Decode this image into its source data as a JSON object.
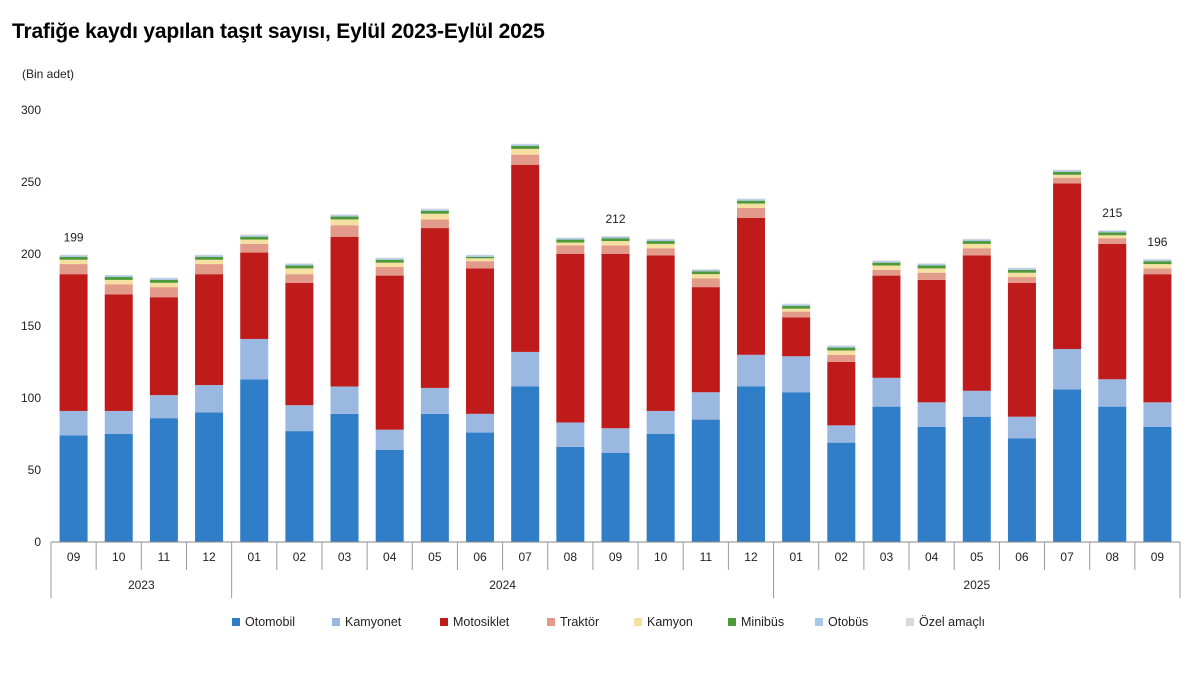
{
  "chart_data": {
    "type": "bar",
    "stacked": true,
    "title": "Trafiğe kaydı yapılan taşıt sayısı, Eylül 2023-Eylül 2025",
    "ylabel": "(Bin adet)",
    "ylim": [
      0,
      300
    ],
    "yticks": [
      "0",
      "50",
      "100",
      "150",
      "200",
      "250",
      "300"
    ],
    "ytick_values": [
      0,
      50,
      100,
      150,
      200,
      250,
      300
    ],
    "categories": [
      "09",
      "10",
      "11",
      "12",
      "01",
      "02",
      "03",
      "04",
      "05",
      "06",
      "07",
      "08",
      "09",
      "10",
      "11",
      "12",
      "01",
      "02",
      "03",
      "04",
      "05",
      "06",
      "07",
      "08",
      "09"
    ],
    "years": [
      {
        "label": "2023",
        "count": 4
      },
      {
        "label": "2024",
        "count": 12
      },
      {
        "label": "2025",
        "count": 9
      }
    ],
    "series": [
      {
        "name": "Otomobil",
        "color": "#2f7ec7",
        "values": [
          74,
          75,
          86,
          90,
          113,
          77,
          89,
          64,
          89,
          76,
          108,
          66,
          62,
          75,
          85,
          108,
          104,
          69,
          94,
          80,
          87,
          72,
          106,
          94,
          80
        ]
      },
      {
        "name": "Kamyonet",
        "color": "#9bb8e0",
        "values": [
          17,
          16,
          16,
          19,
          28,
          18,
          19,
          14,
          18,
          13,
          24,
          17,
          17,
          16,
          19,
          22,
          25,
          12,
          20,
          17,
          18,
          15,
          28,
          19,
          17
        ]
      },
      {
        "name": "Motosiklet",
        "color": "#bf1b1b",
        "values": [
          95,
          81,
          68,
          77,
          60,
          85,
          104,
          107,
          111,
          101,
          130,
          117,
          121,
          108,
          73,
          95,
          27,
          44,
          71,
          85,
          94,
          93,
          115,
          94,
          89
        ]
      },
      {
        "name": "Traktör",
        "color": "#e29a8a",
        "values": [
          7,
          7,
          7,
          7,
          6,
          6,
          8,
          6,
          6,
          5,
          7,
          6,
          6,
          5,
          6,
          7,
          4,
          5,
          4,
          5,
          5,
          4,
          4,
          4,
          4
        ]
      },
      {
        "name": "Kamyon",
        "color": "#f5dfa1",
        "values": [
          3,
          3,
          3,
          3,
          3,
          4,
          4,
          3,
          4,
          2,
          4,
          2,
          3,
          3,
          3,
          3,
          2,
          3,
          3,
          3,
          3,
          3,
          2,
          2,
          3
        ]
      },
      {
        "name": "Minibüs",
        "color": "#4e9a3a",
        "values": [
          2,
          2,
          2,
          2,
          2,
          2,
          2,
          2,
          2,
          1,
          2,
          2,
          2,
          2,
          2,
          2,
          2,
          2,
          2,
          2,
          2,
          2,
          2,
          2,
          2
        ]
      },
      {
        "name": "Otobüs",
        "color": "#a9c7e8",
        "values": [
          1,
          1,
          1,
          1,
          1,
          1,
          1,
          1,
          1,
          1,
          1,
          1,
          1,
          1,
          1,
          1,
          1,
          1,
          1,
          1,
          1,
          1,
          1,
          1,
          1
        ]
      },
      {
        "name": "Özel amaçlı",
        "color": "#d9d9d9",
        "values": [
          0.5,
          0.5,
          0.5,
          0.5,
          0.5,
          0.5,
          0.5,
          0.5,
          0.5,
          0.5,
          0.5,
          0.5,
          0.5,
          0.5,
          0.5,
          0.5,
          0.5,
          0.5,
          0.5,
          0.5,
          0.5,
          0.5,
          0.5,
          0.5,
          0.5
        ]
      }
    ],
    "annotations": [
      {
        "index": 0,
        "text": "199"
      },
      {
        "index": 12,
        "text": "212"
      },
      {
        "index": 23,
        "text": "215"
      },
      {
        "index": 24,
        "text": "196"
      }
    ],
    "legend_position": "bottom"
  }
}
